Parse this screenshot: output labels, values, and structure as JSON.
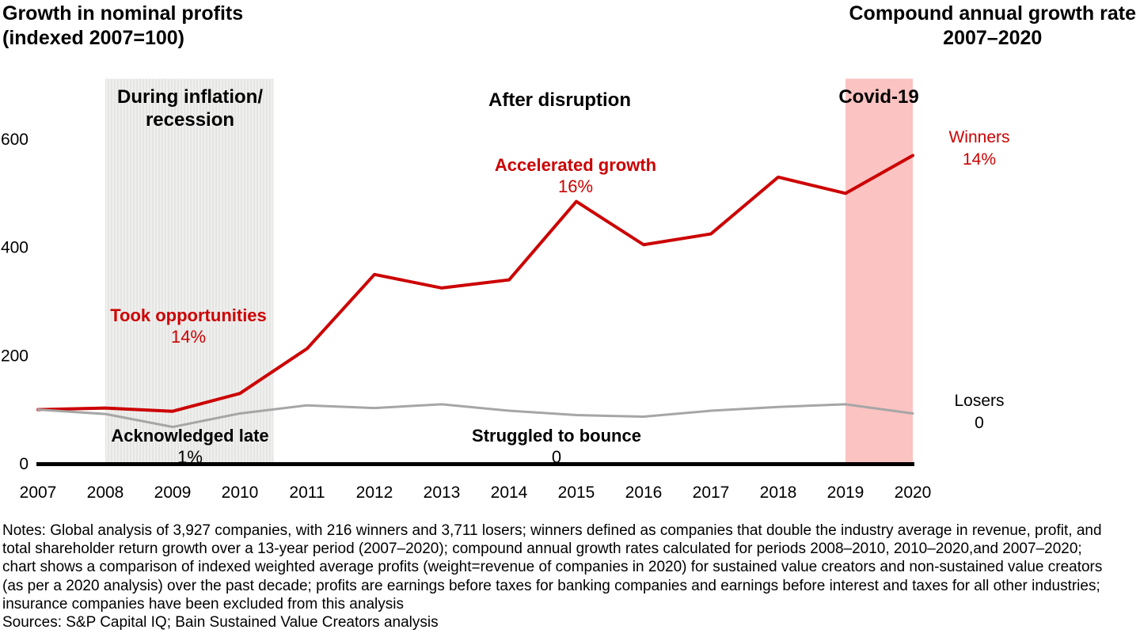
{
  "titles": {
    "left_line1": "Growth in nominal profits",
    "left_line2": "(indexed 2007=100)",
    "right_line1": "Compound annual growth rate",
    "right_line2": "2007–2020"
  },
  "chart_data": {
    "type": "line",
    "x": [
      2007,
      2008,
      2009,
      2010,
      2011,
      2012,
      2013,
      2014,
      2015,
      2016,
      2017,
      2018,
      2019,
      2020
    ],
    "series": [
      {
        "name": "Winners",
        "color": "#cc0000",
        "values": [
          100,
          103,
          97,
          130,
          213,
          350,
          325,
          340,
          485,
          405,
          425,
          530,
          500,
          570
        ]
      },
      {
        "name": "Losers",
        "color": "#a6a6a6",
        "values": [
          100,
          92,
          68,
          93,
          108,
          103,
          110,
          98,
          90,
          87,
          98,
          105,
          110,
          93
        ]
      }
    ],
    "yticks": [
      0,
      200,
      400,
      600
    ],
    "ylim": [
      0,
      712
    ],
    "grid": false,
    "legend_position": "right-of-line-ends",
    "title": "Growth in nominal profits (indexed 2007=100)",
    "xlabel": "",
    "ylabel": "",
    "regions": [
      {
        "name": "inflation-recession",
        "label": "During inflation/ recession",
        "x_start": 2008,
        "x_end": 2010.5,
        "fill": "stripes"
      },
      {
        "name": "covid-19",
        "label": "Covid-19",
        "x_start": 2019,
        "x_end": 2020,
        "fill": "#fbc3c1"
      }
    ]
  },
  "annotations": {
    "inflation": {
      "line1": "During inflation/",
      "line2": "recession"
    },
    "after_disruption": "After disruption",
    "covid": "Covid-19",
    "took_opportunities": {
      "label": "Took opportunities",
      "value": "14%"
    },
    "acknowledged_late": {
      "label": "Acknowledged late",
      "value": "1%"
    },
    "accelerated_growth": {
      "label": "Accelerated growth",
      "value": "16%"
    },
    "struggled_to_bounce": {
      "label": "Struggled to bounce",
      "value": "0"
    },
    "winners": {
      "label": "Winners",
      "value": "14%"
    },
    "losers": {
      "label": "Losers",
      "value": "0"
    }
  },
  "colors": {
    "accent_red": "#cc0000",
    "loser_gray": "#a6a6a6",
    "covid_band_pink": "#fbc3c1",
    "recession_band_gray": "#e9e9e7"
  },
  "footer": {
    "notes_lines": [
      "Notes: Global analysis of 3,927 companies, with 216 winners and 3,711 losers; winners defined as companies that double the industry average in revenue, profit, and",
      "total shareholder return growth over a 13-year period (2007–2020); compound annual growth rates calculated for periods 2008–2010, 2010–2020,and 2007–2020;",
      "chart shows a comparison of indexed weighted average profits (weight=revenue of companies in 2020) for sustained value creators and non-sustained value creators",
      "(as per a 2020 analysis) over the past decade; profits are earnings before taxes for banking companies and earnings before interest and taxes for all other industries;",
      "insurance companies have been excluded from this analysis"
    ],
    "sources": "Sources: S&P Capital IQ; Bain Sustained Value Creators analysis"
  }
}
